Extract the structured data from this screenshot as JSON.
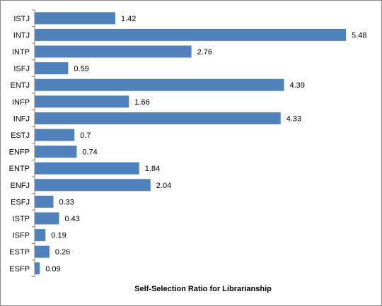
{
  "chart_data": {
    "type": "bar",
    "orientation": "horizontal",
    "categories": [
      "ISTJ",
      "INTJ",
      "INTP",
      "ISFJ",
      "ENTJ",
      "INFP",
      "INFJ",
      "ESTJ",
      "ENFP",
      "ENTP",
      "ENFJ",
      "ESFJ",
      "ISTP",
      "ISFP",
      "ESTP",
      "ESFP"
    ],
    "values": [
      1.42,
      5.48,
      2.76,
      0.59,
      4.39,
      1.66,
      4.33,
      0.7,
      0.74,
      1.84,
      2.04,
      0.33,
      0.43,
      0.19,
      0.26,
      0.09
    ],
    "value_labels": [
      "1.42",
      "5.48",
      "2.76",
      "0.59",
      "4.39",
      "1.66",
      "4.33",
      "0.7",
      "0.74",
      "1.84",
      "2.04",
      "0.33",
      "0.43",
      "0.19",
      "0.26",
      "0.09"
    ],
    "title": "",
    "xlabel": "Self-Selection Ratio for Librarianship",
    "ylabel": "",
    "xlim": [
      0,
      6
    ],
    "grid": false,
    "legend": "none",
    "bar_color": "#4f81bd"
  }
}
